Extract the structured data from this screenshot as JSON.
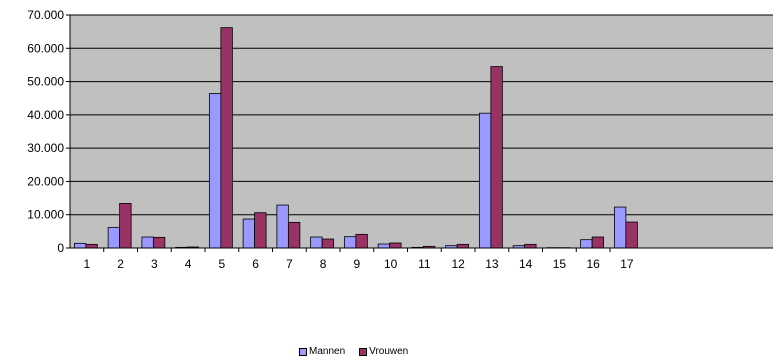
{
  "chart_data": {
    "type": "bar",
    "categories": [
      "1",
      "2",
      "3",
      "4",
      "5",
      "6",
      "7",
      "8",
      "9",
      "10",
      "11",
      "12",
      "13",
      "14",
      "15",
      "16",
      "17"
    ],
    "series": [
      {
        "name": "Mannen",
        "color": "#9999ff",
        "values": [
          1400,
          6200,
          3300,
          200,
          46400,
          8700,
          12900,
          3300,
          3400,
          1200,
          200,
          700,
          40500,
          700,
          100,
          2500,
          12300
        ]
      },
      {
        "name": "Vrouwen",
        "color": "#993366",
        "values": [
          1100,
          13400,
          3200,
          300,
          66200,
          10600,
          7700,
          2700,
          4100,
          1500,
          500,
          1100,
          54500,
          1100,
          100,
          3300,
          7800
        ]
      }
    ],
    "yticks": [
      "0",
      "10.000",
      "20.000",
      "30.000",
      "40.000",
      "50.000",
      "60.000",
      "70.000"
    ],
    "ylim": [
      0,
      70000
    ],
    "grid": true,
    "plot_background": "#c0c0c0",
    "legend_position": "bottom"
  }
}
